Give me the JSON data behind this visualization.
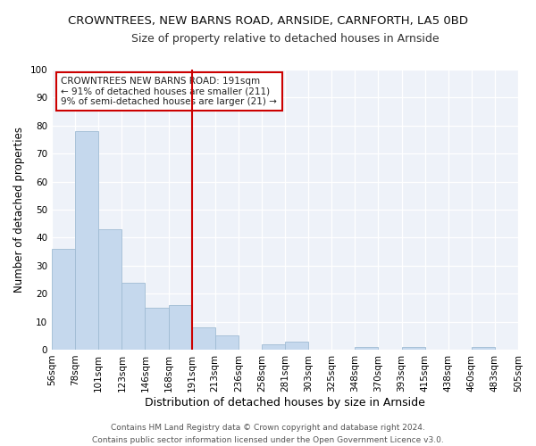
{
  "title": "CROWNTREES, NEW BARNS ROAD, ARNSIDE, CARNFORTH, LA5 0BD",
  "subtitle": "Size of property relative to detached houses in Arnside",
  "xlabel": "Distribution of detached houses by size in Arnside",
  "ylabel": "Number of detached properties",
  "bar_values": [
    36,
    78,
    43,
    24,
    15,
    16,
    8,
    5,
    0,
    2,
    3,
    0,
    0,
    1,
    0,
    1,
    0,
    0,
    1,
    0
  ],
  "tick_labels": [
    "56sqm",
    "78sqm",
    "101sqm",
    "123sqm",
    "146sqm",
    "168sqm",
    "191sqm",
    "213sqm",
    "236sqm",
    "258sqm",
    "281sqm",
    "303sqm",
    "325sqm",
    "348sqm",
    "370sqm",
    "393sqm",
    "415sqm",
    "438sqm",
    "460sqm",
    "483sqm",
    "505sqm"
  ],
  "bar_color": "#c5d8ed",
  "bar_edge_color": "#a0bcd4",
  "red_line_index": 6,
  "ylim": [
    0,
    100
  ],
  "yticks": [
    0,
    10,
    20,
    30,
    40,
    50,
    60,
    70,
    80,
    90,
    100
  ],
  "annotation_title": "CROWNTREES NEW BARNS ROAD: 191sqm",
  "annotation_line1": "← 91% of detached houses are smaller (211)",
  "annotation_line2": "9% of semi-detached houses are larger (21) →",
  "annotation_box_color": "#ffffff",
  "annotation_box_edge": "#cc0000",
  "footer_line1": "Contains HM Land Registry data © Crown copyright and database right 2024.",
  "footer_line2": "Contains public sector information licensed under the Open Government Licence v3.0.",
  "background_color": "#eef2f9",
  "title_fontsize": 9.5,
  "subtitle_fontsize": 9,
  "tick_fontsize": 7.5,
  "xlabel_fontsize": 9,
  "ylabel_fontsize": 8.5,
  "footer_fontsize": 6.5
}
